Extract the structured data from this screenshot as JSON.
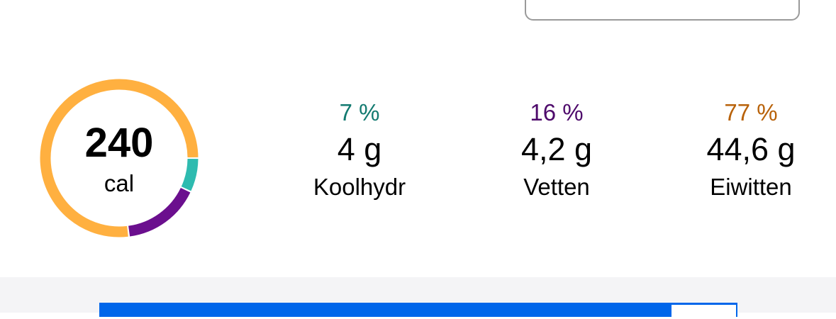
{
  "summary": {
    "calories": "240",
    "unit": "cal"
  },
  "macros": [
    {
      "percent": "7 %",
      "grams": "4 g",
      "label": "Koolhydr",
      "share": 7,
      "color": "#2ebbb0",
      "text_color": "#127a70"
    },
    {
      "percent": "16 %",
      "grams": "4,2 g",
      "label": "Vetten",
      "share": 16,
      "color": "#6b0f8e",
      "text_color": "#4e0a6b"
    },
    {
      "percent": "77 %",
      "grams": "44,6 g",
      "label": "Eiwitten",
      "share": 77,
      "color": "#ffb040",
      "text_color": "#b8620a"
    }
  ],
  "banner": {
    "color": "#0066ea"
  }
}
